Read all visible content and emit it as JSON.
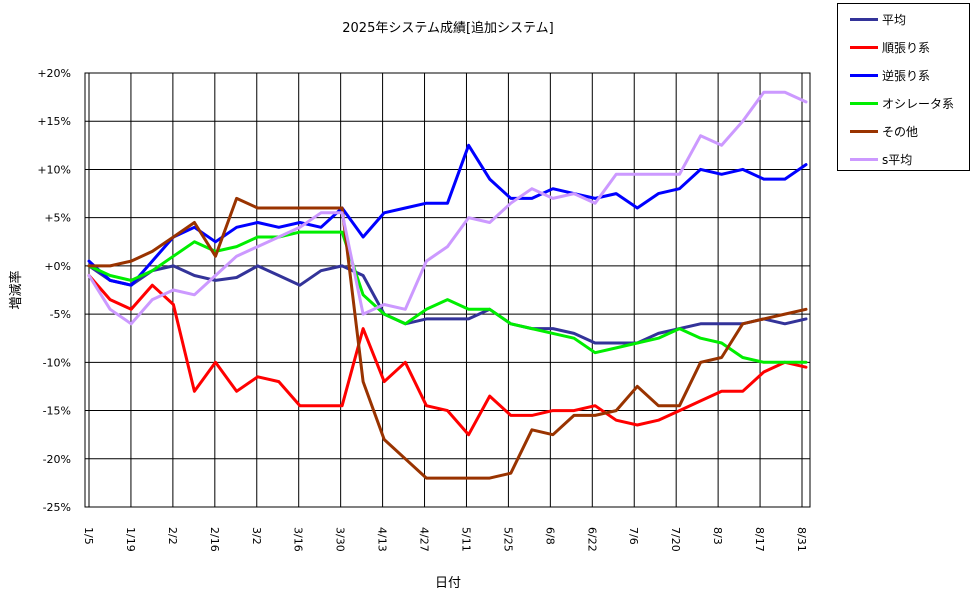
{
  "chart_data": {
    "type": "line",
    "title": "2025年システム成績[追加システム]",
    "xlabel": "日付",
    "ylabel": "増減率",
    "ylim": [
      -25,
      20
    ],
    "y_ticks": [
      20,
      15,
      10,
      5,
      0,
      -5,
      -10,
      -15,
      -20,
      -25
    ],
    "y_tick_labels": [
      "+20%",
      "+15%",
      "+10%",
      "+5%",
      "+0%",
      "-5%",
      "-10%",
      "-15%",
      "-20%",
      "-25%"
    ],
    "x_tick_labels": [
      "1/5",
      "1/19",
      "2/2",
      "2/16",
      "3/2",
      "3/16",
      "3/30",
      "4/13",
      "4/27",
      "5/11",
      "5/25",
      "6/8",
      "6/22",
      "7/6",
      "7/20",
      "8/3",
      "8/17",
      "8/31"
    ],
    "grid": true,
    "legend_position": "top-right",
    "x": [
      "1/5",
      "1/12",
      "1/19",
      "1/26",
      "2/2",
      "2/9",
      "2/16",
      "2/23",
      "3/2",
      "3/9",
      "3/16",
      "3/23",
      "3/30",
      "4/6",
      "4/13",
      "4/20",
      "4/27",
      "5/4",
      "5/11",
      "5/18",
      "5/25",
      "6/1",
      "6/8",
      "6/15",
      "6/22",
      "6/29",
      "7/6",
      "7/13",
      "7/20",
      "7/27",
      "8/3",
      "8/10",
      "8/17",
      "8/24",
      "8/31"
    ],
    "series": [
      {
        "name": "平均",
        "color": "#333399",
        "values": [
          0,
          -1.5,
          -2,
          -0.5,
          0,
          -1,
          -1.5,
          -1.2,
          0,
          -1,
          -2,
          -0.5,
          0,
          -1,
          -5,
          -6,
          -5.5,
          -5.5,
          -5.5,
          -4.5,
          -6,
          -6.5,
          -6.5,
          -7,
          -8,
          -8,
          -8,
          -7,
          -6.5,
          -6,
          -6,
          -6,
          -5.5,
          -6,
          -5.5
        ]
      },
      {
        "name": "順張り系",
        "color": "#ff0000",
        "values": [
          -1,
          -3.5,
          -4.5,
          -2,
          -4,
          -13,
          -10,
          -13,
          -11.5,
          -12,
          -14.5,
          -14.5,
          -14.5,
          -6.5,
          -12,
          -10,
          -14.5,
          -15,
          -17.5,
          -13.5,
          -15.5,
          -15.5,
          -15,
          -15,
          -14.5,
          -16,
          -16.5,
          -16,
          -15,
          -14,
          -13,
          -13,
          -11,
          -10,
          -10.5
        ]
      },
      {
        "name": "逆張り系",
        "color": "#0000ff",
        "values": [
          0.5,
          -1.5,
          -2,
          0.5,
          3,
          4,
          2.5,
          4,
          4.5,
          4,
          4.5,
          4,
          6,
          3,
          5.5,
          6,
          6.5,
          6.5,
          12.5,
          9,
          7,
          7,
          8,
          7.5,
          7,
          7.5,
          6,
          7.5,
          8,
          10,
          9.5,
          10,
          9,
          9,
          10.5
        ]
      },
      {
        "name": "オシレータ系",
        "color": "#00ee00",
        "values": [
          0,
          -1,
          -1.5,
          -0.5,
          1,
          2.5,
          1.5,
          2,
          3,
          3,
          3.5,
          3.5,
          3.5,
          -3,
          -5,
          -6,
          -4.5,
          -3.5,
          -4.5,
          -4.5,
          -6,
          -6.5,
          -7,
          -7.5,
          -9,
          -8.5,
          -8,
          -7.5,
          -6.5,
          -7.5,
          -8,
          -9.5,
          -10,
          -10,
          -10
        ]
      },
      {
        "name": "その他",
        "color": "#993300",
        "values": [
          0,
          0,
          0.5,
          1.5,
          3,
          4.5,
          1,
          7,
          6,
          6,
          6,
          6,
          6,
          -12,
          -18,
          -20,
          -22,
          -22,
          -22,
          -22,
          -21.5,
          -17,
          -17.5,
          -15.5,
          -15.5,
          -15,
          -12.5,
          -14.5,
          -14.5,
          -10,
          -9.5,
          -6,
          -5.5,
          -5,
          -4.5
        ]
      },
      {
        "name": "s平均",
        "color": "#cc99ff",
        "values": [
          -1,
          -4.5,
          -6,
          -3.5,
          -2.5,
          -3,
          -1,
          1,
          2,
          3,
          4,
          5.5,
          5.5,
          -5,
          -4,
          -4.5,
          0.5,
          2,
          5,
          4.5,
          6.5,
          8,
          7,
          7.5,
          6.5,
          9.5,
          9.5,
          9.5,
          9.5,
          13.5,
          12.5,
          15,
          18,
          18,
          17
        ]
      }
    ]
  }
}
